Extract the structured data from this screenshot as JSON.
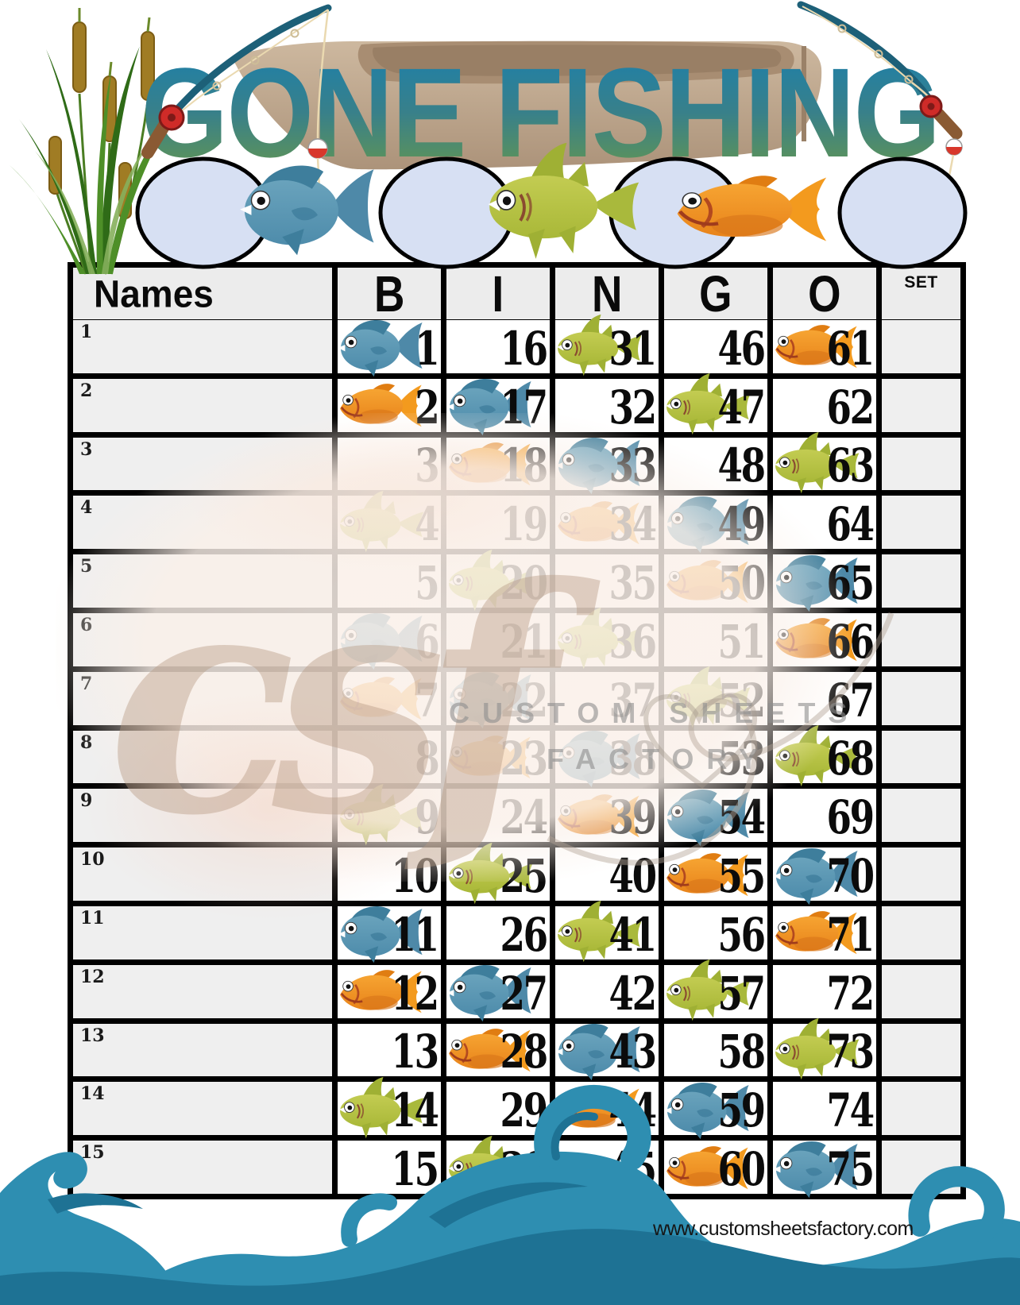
{
  "header": {
    "title": "GONE FISHING",
    "decorations": [
      "cattails",
      "row-boat",
      "fishing-rod-left",
      "fishing-rod-right",
      "bobber-left",
      "bobber-right"
    ],
    "circles": [
      {
        "fish": "blue"
      },
      {
        "fish": "green"
      },
      {
        "fish": "orange"
      },
      {
        "fish": "none"
      }
    ]
  },
  "table": {
    "columns": [
      "Names",
      "B",
      "I",
      "N",
      "G",
      "O",
      "SET"
    ],
    "rows": [
      {
        "row": "1",
        "name": "",
        "set": "",
        "cells": [
          {
            "col": "B",
            "num": "1",
            "fish": "blue"
          },
          {
            "col": "I",
            "num": "16",
            "fish": "none"
          },
          {
            "col": "N",
            "num": "31",
            "fish": "green"
          },
          {
            "col": "G",
            "num": "46",
            "fish": "none"
          },
          {
            "col": "O",
            "num": "61",
            "fish": "orange"
          }
        ]
      },
      {
        "row": "2",
        "name": "",
        "set": "",
        "cells": [
          {
            "col": "B",
            "num": "2",
            "fish": "orange"
          },
          {
            "col": "I",
            "num": "17",
            "fish": "blue"
          },
          {
            "col": "N",
            "num": "32",
            "fish": "none"
          },
          {
            "col": "G",
            "num": "47",
            "fish": "green"
          },
          {
            "col": "O",
            "num": "62",
            "fish": "none"
          }
        ]
      },
      {
        "row": "3",
        "name": "",
        "set": "",
        "cells": [
          {
            "col": "B",
            "num": "3",
            "fish": "none"
          },
          {
            "col": "I",
            "num": "18",
            "fish": "orange"
          },
          {
            "col": "N",
            "num": "33",
            "fish": "blue"
          },
          {
            "col": "G",
            "num": "48",
            "fish": "none"
          },
          {
            "col": "O",
            "num": "63",
            "fish": "green"
          }
        ]
      },
      {
        "row": "4",
        "name": "",
        "set": "",
        "cells": [
          {
            "col": "B",
            "num": "4",
            "fish": "green"
          },
          {
            "col": "I",
            "num": "19",
            "fish": "none"
          },
          {
            "col": "N",
            "num": "34",
            "fish": "orange"
          },
          {
            "col": "G",
            "num": "49",
            "fish": "blue"
          },
          {
            "col": "O",
            "num": "64",
            "fish": "none"
          }
        ]
      },
      {
        "row": "5",
        "name": "",
        "set": "",
        "cells": [
          {
            "col": "B",
            "num": "5",
            "fish": "none"
          },
          {
            "col": "I",
            "num": "20",
            "fish": "green"
          },
          {
            "col": "N",
            "num": "35",
            "fish": "none"
          },
          {
            "col": "G",
            "num": "50",
            "fish": "orange"
          },
          {
            "col": "O",
            "num": "65",
            "fish": "blue"
          }
        ]
      },
      {
        "row": "6",
        "name": "",
        "set": "",
        "cells": [
          {
            "col": "B",
            "num": "6",
            "fish": "blue"
          },
          {
            "col": "I",
            "num": "21",
            "fish": "none"
          },
          {
            "col": "N",
            "num": "36",
            "fish": "green"
          },
          {
            "col": "G",
            "num": "51",
            "fish": "none"
          },
          {
            "col": "O",
            "num": "66",
            "fish": "orange"
          }
        ]
      },
      {
        "row": "7",
        "name": "",
        "set": "",
        "cells": [
          {
            "col": "B",
            "num": "7",
            "fish": "orange"
          },
          {
            "col": "I",
            "num": "22",
            "fish": "blue"
          },
          {
            "col": "N",
            "num": "37",
            "fish": "none"
          },
          {
            "col": "G",
            "num": "52",
            "fish": "green"
          },
          {
            "col": "O",
            "num": "67",
            "fish": "none"
          }
        ]
      },
      {
        "row": "8",
        "name": "",
        "set": "",
        "cells": [
          {
            "col": "B",
            "num": "8",
            "fish": "none"
          },
          {
            "col": "I",
            "num": "23",
            "fish": "orange"
          },
          {
            "col": "N",
            "num": "38",
            "fish": "blue"
          },
          {
            "col": "G",
            "num": "53",
            "fish": "none"
          },
          {
            "col": "O",
            "num": "68",
            "fish": "green"
          }
        ]
      },
      {
        "row": "9",
        "name": "",
        "set": "",
        "cells": [
          {
            "col": "B",
            "num": "9",
            "fish": "green"
          },
          {
            "col": "I",
            "num": "24",
            "fish": "none"
          },
          {
            "col": "N",
            "num": "39",
            "fish": "orange"
          },
          {
            "col": "G",
            "num": "54",
            "fish": "blue"
          },
          {
            "col": "O",
            "num": "69",
            "fish": "none"
          }
        ]
      },
      {
        "row": "10",
        "name": "",
        "set": "",
        "cells": [
          {
            "col": "B",
            "num": "10",
            "fish": "none"
          },
          {
            "col": "I",
            "num": "25",
            "fish": "green"
          },
          {
            "col": "N",
            "num": "40",
            "fish": "none"
          },
          {
            "col": "G",
            "num": "55",
            "fish": "orange"
          },
          {
            "col": "O",
            "num": "70",
            "fish": "blue"
          }
        ]
      },
      {
        "row": "11",
        "name": "",
        "set": "",
        "cells": [
          {
            "col": "B",
            "num": "11",
            "fish": "blue"
          },
          {
            "col": "I",
            "num": "26",
            "fish": "none"
          },
          {
            "col": "N",
            "num": "41",
            "fish": "green"
          },
          {
            "col": "G",
            "num": "56",
            "fish": "none"
          },
          {
            "col": "O",
            "num": "71",
            "fish": "orange"
          }
        ]
      },
      {
        "row": "12",
        "name": "",
        "set": "",
        "cells": [
          {
            "col": "B",
            "num": "12",
            "fish": "orange"
          },
          {
            "col": "I",
            "num": "27",
            "fish": "blue"
          },
          {
            "col": "N",
            "num": "42",
            "fish": "none"
          },
          {
            "col": "G",
            "num": "57",
            "fish": "green"
          },
          {
            "col": "O",
            "num": "72",
            "fish": "none"
          }
        ]
      },
      {
        "row": "13",
        "name": "",
        "set": "",
        "cells": [
          {
            "col": "B",
            "num": "13",
            "fish": "none"
          },
          {
            "col": "I",
            "num": "28",
            "fish": "orange"
          },
          {
            "col": "N",
            "num": "43",
            "fish": "blue"
          },
          {
            "col": "G",
            "num": "58",
            "fish": "none"
          },
          {
            "col": "O",
            "num": "73",
            "fish": "green"
          }
        ]
      },
      {
        "row": "14",
        "name": "",
        "set": "",
        "cells": [
          {
            "col": "B",
            "num": "14",
            "fish": "green"
          },
          {
            "col": "I",
            "num": "29",
            "fish": "none"
          },
          {
            "col": "N",
            "num": "44",
            "fish": "orange"
          },
          {
            "col": "G",
            "num": "59",
            "fish": "blue"
          },
          {
            "col": "O",
            "num": "74",
            "fish": "none"
          }
        ]
      },
      {
        "row": "15",
        "name": "",
        "set": "",
        "cells": [
          {
            "col": "B",
            "num": "15",
            "fish": "none"
          },
          {
            "col": "I",
            "num": "30",
            "fish": "green"
          },
          {
            "col": "N",
            "num": "45",
            "fish": "none"
          },
          {
            "col": "G",
            "num": "60",
            "fish": "orange"
          },
          {
            "col": "O",
            "num": "75",
            "fish": "blue"
          }
        ]
      }
    ]
  },
  "watermark": {
    "script": "csf",
    "line1": "CUSTOM  SHEETS",
    "line2": "FACTORY"
  },
  "footer": {
    "url": "www.customsheetsfactory.com"
  },
  "colors": {
    "fish_blue": "#4f8cab",
    "fish_green": "#b3c044",
    "fish_orange": "#f0931f",
    "grid": "#000000",
    "header_bg": "#ececec",
    "name_bg": "#efefef",
    "circle_fill": "#d7e0f3",
    "title_top": "#1a7fae",
    "title_bottom": "#68994a",
    "boat_tan": "#c3ab93",
    "wave_blue": "#2e8eb1",
    "wave_dark": "#1e7294"
  }
}
